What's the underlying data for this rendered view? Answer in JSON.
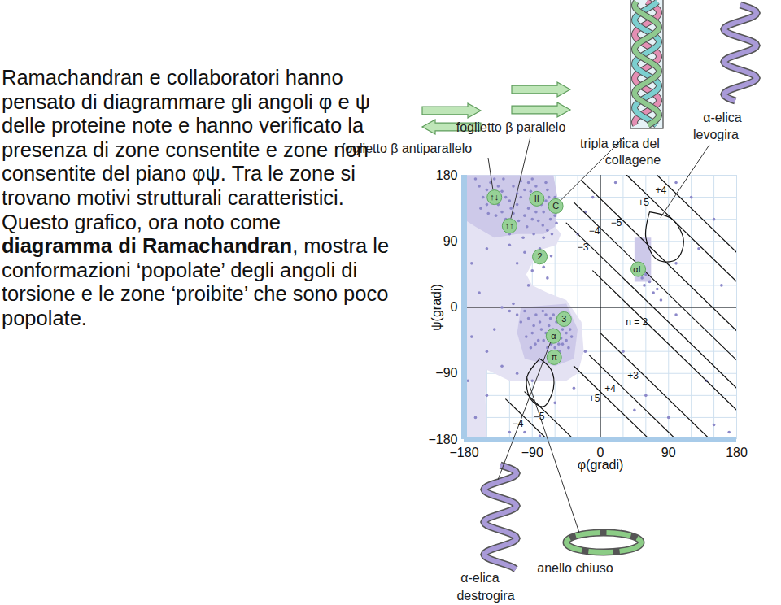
{
  "paragraph": {
    "before": "Ramachandran e collaboratori hanno pensato di diagrammare gli angoli φ e ψ delle proteine note e hanno verificato la presenza di zone consentite e zone non consentite del piano φψ. Tra le zone si trovano motivi strutturali caratteristici. Questo grafico, ora noto come ",
    "bold": "diagramma di Ramachandran",
    "after": ", mostra le conformazioni ‘popolate’ degli angoli di torsione e le zone ‘proibite’ che sono poco popolate."
  },
  "chart_data": {
    "type": "scatter",
    "x_label": "φ(gradi)",
    "y_label": "ψ(gradi)",
    "xlim": [
      -180,
      180
    ],
    "ylim": [
      -180,
      180
    ],
    "xticks": [
      -180,
      -90,
      0,
      90,
      180
    ],
    "yticks": [
      -180,
      -90,
      0,
      90,
      180
    ],
    "grid": true,
    "points": {
      "color": "#8c88c9",
      "values": [
        [
          -150,
          160
        ],
        [
          -145,
          170
        ],
        [
          -140,
          175
        ],
        [
          -135,
          165
        ],
        [
          -130,
          158
        ],
        [
          -125,
          150
        ],
        [
          -120,
          145
        ],
        [
          -118,
          135
        ],
        [
          -115,
          128
        ],
        [
          -110,
          140
        ],
        [
          -105,
          150
        ],
        [
          -100,
          160
        ],
        [
          -95,
          170
        ],
        [
          -90,
          175
        ],
        [
          -85,
          165
        ],
        [
          -80,
          150
        ],
        [
          -78,
          140
        ],
        [
          -75,
          130
        ],
        [
          -72,
          145
        ],
        [
          -70,
          160
        ],
        [
          -68,
          150
        ],
        [
          -65,
          140
        ],
        [
          -62,
          135
        ],
        [
          -60,
          125
        ],
        [
          -66,
          120
        ],
        [
          -85,
          130
        ],
        [
          -90,
          120
        ],
        [
          -95,
          135
        ],
        [
          -100,
          125
        ],
        [
          -108,
          118
        ],
        [
          -112,
          110
        ],
        [
          -125,
          120
        ],
        [
          -130,
          130
        ],
        [
          -135,
          140
        ],
        [
          -140,
          145
        ],
        [
          -145,
          150
        ],
        [
          -150,
          140
        ],
        [
          -155,
          150
        ],
        [
          -160,
          165
        ],
        [
          -165,
          175
        ],
        [
          -128,
          175
        ],
        [
          -115,
          165
        ],
        [
          -105,
          172
        ],
        [
          -92,
          158
        ],
        [
          -88,
          142
        ],
        [
          -82,
          118
        ],
        [
          -76,
          112
        ],
        [
          -70,
          105
        ],
        [
          -97,
          110
        ],
        [
          -120,
          100
        ],
        [
          -138,
          125
        ],
        [
          -148,
          128
        ],
        [
          -158,
          135
        ],
        [
          -110,
          155
        ],
        [
          -72,
          170
        ],
        [
          -60,
          150
        ],
        [
          -55,
          140
        ],
        [
          -58,
          115
        ],
        [
          -64,
          100
        ],
        [
          -75,
          95
        ],
        [
          -88,
          100
        ],
        [
          -102,
          95
        ],
        [
          -100,
          -170
        ],
        [
          -80,
          -175
        ],
        [
          -80,
          80
        ],
        [
          -85,
          65
        ],
        [
          -90,
          50
        ],
        [
          -75,
          55
        ],
        [
          -70,
          40
        ],
        [
          -95,
          30
        ],
        [
          -65,
          70
        ],
        [
          -100,
          75
        ],
        [
          -110,
          60
        ],
        [
          -120,
          85
        ],
        [
          -70,
          -40
        ],
        [
          -65,
          -42
        ],
        [
          -62,
          -38
        ],
        [
          -60,
          -45
        ],
        [
          -58,
          -40
        ],
        [
          -55,
          -35
        ],
        [
          -52,
          -42
        ],
        [
          -50,
          -30
        ],
        [
          -48,
          -25
        ],
        [
          -45,
          -35
        ],
        [
          -63,
          -30
        ],
        [
          -68,
          -25
        ],
        [
          -72,
          -35
        ],
        [
          -75,
          -45
        ],
        [
          -78,
          -30
        ],
        [
          -80,
          -20
        ],
        [
          -85,
          -10
        ],
        [
          -88,
          -25
        ],
        [
          -90,
          -35
        ],
        [
          -95,
          -15
        ],
        [
          -60,
          -55
        ],
        [
          -55,
          -50
        ],
        [
          -65,
          -50
        ],
        [
          -70,
          -55
        ],
        [
          -50,
          -50
        ],
        [
          -45,
          -45
        ],
        [
          -42,
          -55
        ],
        [
          -58,
          -20
        ],
        [
          -66,
          -15
        ],
        [
          -62,
          -10
        ],
        [
          -72,
          -10
        ],
        [
          -76,
          -5
        ],
        [
          -100,
          -5
        ],
        [
          -105,
          -20
        ],
        [
          -110,
          -10
        ],
        [
          -82,
          -45
        ],
        [
          -86,
          -50
        ],
        [
          -92,
          -55
        ],
        [
          -98,
          -40
        ],
        [
          -54,
          -60
        ],
        [
          -60,
          -65
        ],
        [
          -68,
          -62
        ],
        [
          -48,
          -12
        ],
        [
          -44,
          -20
        ],
        [
          -40,
          -30
        ],
        [
          -38,
          -40
        ],
        [
          -115,
          5
        ],
        [
          -120,
          -5
        ],
        [
          -130,
          0
        ],
        [
          -150,
          80
        ],
        [
          -170,
          60
        ],
        [
          -160,
          20
        ],
        [
          -140,
          -30
        ],
        [
          -170,
          -40
        ],
        [
          -130,
          -80
        ],
        [
          -110,
          -90
        ],
        [
          -90,
          -100
        ],
        [
          -150,
          -120
        ],
        [
          -165,
          -150
        ],
        [
          -120,
          -170
        ],
        [
          -60,
          -130
        ],
        [
          -20,
          -60
        ],
        [
          -10,
          150
        ],
        [
          20,
          170
        ],
        [
          70,
          20
        ],
        [
          55,
          40
        ],
        [
          60,
          45
        ],
        [
          65,
          35
        ],
        [
          75,
          25
        ],
        [
          50,
          60
        ],
        [
          58,
          30
        ],
        [
          80,
          10
        ],
        [
          100,
          -10
        ],
        [
          120,
          150
        ],
        [
          150,
          120
        ],
        [
          170,
          -170
        ],
        [
          150,
          -160
        ],
        [
          90,
          -150
        ],
        [
          60,
          -120
        ],
        [
          100,
          60
        ],
        [
          130,
          80
        ],
        [
          160,
          30
        ],
        [
          100,
          170
        ],
        [
          -30,
          100
        ],
        [
          -20,
          130
        ],
        [
          -35,
          -110
        ],
        [
          30,
          -60
        ],
        [
          45,
          -140
        ],
        [
          140,
          -100
        ],
        [
          -175,
          -100
        ],
        [
          -150,
          -60
        ]
      ]
    },
    "regions": [
      {
        "color": "#e4e2f3",
        "points": [
          [
            -180,
            180
          ],
          [
            -62,
            180
          ],
          [
            -60,
            110
          ],
          [
            -52,
            100
          ],
          [
            -58,
            85
          ],
          [
            -80,
            78
          ],
          [
            -90,
            60
          ],
          [
            -98,
            45
          ],
          [
            -90,
            30
          ],
          [
            -70,
            20
          ],
          [
            -45,
            10
          ],
          [
            -25,
            -20
          ],
          [
            -22,
            -60
          ],
          [
            -30,
            -90
          ],
          [
            -45,
            -100
          ],
          [
            -120,
            -100
          ],
          [
            -150,
            -85
          ],
          [
            -152,
            -120
          ],
          [
            -150,
            -180
          ],
          [
            -180,
            -180
          ]
        ]
      },
      {
        "color": "#cdc9e9",
        "points": [
          [
            -180,
            180
          ],
          [
            -62,
            180
          ],
          [
            -55,
            140
          ],
          [
            -60,
            110
          ],
          [
            -75,
            100
          ],
          [
            -110,
            100
          ],
          [
            -140,
            95
          ],
          [
            -165,
            110
          ],
          [
            -180,
            120
          ]
        ]
      },
      {
        "color": "#cdc9e9",
        "points": [
          [
            -105,
            0
          ],
          [
            -45,
            5
          ],
          [
            -30,
            -30
          ],
          [
            -35,
            -70
          ],
          [
            -60,
            -80
          ],
          [
            -100,
            -70
          ],
          [
            -110,
            -35
          ]
        ]
      },
      {
        "color": "#cdc9e9",
        "points": [
          [
            45,
            95
          ],
          [
            67,
            95
          ],
          [
            67,
            35
          ],
          [
            45,
            35
          ]
        ]
      }
    ],
    "contours": [
      {
        "points": [
          [
            -10,
            50
          ],
          [
            180,
            -140
          ]
        ]
      },
      {
        "points": [
          [
            -45,
            115
          ],
          [
            180,
            -110
          ]
        ]
      },
      {
        "points": [
          [
            -35,
            143
          ],
          [
            180,
            -72
          ]
        ]
      },
      {
        "points": [
          [
            -25,
            173
          ],
          [
            180,
            -32
          ]
        ]
      },
      {
        "points": [
          [
            35,
            180
          ],
          [
            180,
            35
          ]
        ]
      },
      {
        "points": [
          [
            75,
            180
          ],
          [
            180,
            75
          ]
        ]
      },
      {
        "points": [
          [
            0,
            -35
          ],
          [
            145,
            -180
          ]
        ]
      },
      {
        "points": [
          [
            -15,
            -65
          ],
          [
            100,
            -180
          ]
        ]
      },
      {
        "points": [
          [
            -35,
            -80
          ],
          [
            65,
            -180
          ]
        ]
      },
      {
        "points": [
          [
            -100,
            -115
          ],
          [
            -70,
            -145
          ],
          [
            -35,
            -180
          ]
        ]
      },
      {
        "points": [
          [
            -125,
            -125
          ],
          [
            -95,
            -155
          ],
          [
            -70,
            -180
          ]
        ]
      },
      {
        "points": [
          [
            -80,
            -70
          ],
          [
            -65,
            -85
          ],
          [
            -62,
            -110
          ],
          [
            -75,
            -135
          ],
          [
            -92,
            -125
          ],
          [
            -97,
            -95
          ],
          [
            -80,
            -70
          ]
        ]
      },
      {
        "points": [
          [
            65,
            130
          ],
          [
            95,
            120
          ],
          [
            110,
            90
          ],
          [
            100,
            65
          ],
          [
            75,
            65
          ],
          [
            60,
            95
          ],
          [
            65,
            130
          ]
        ]
      }
    ],
    "contour_labels": [
      {
        "text": "−3",
        "x": -23,
        "y": 82
      },
      {
        "text": "−4",
        "x": -8,
        "y": 104
      },
      {
        "text": "−5",
        "x": 21,
        "y": 115
      },
      {
        "text": "+5",
        "x": 57,
        "y": 143
      },
      {
        "text": "+4",
        "x": 80,
        "y": 159
      },
      {
        "text": "n = 2",
        "x": 48,
        "y": -20
      },
      {
        "text": "+3",
        "x": 43,
        "y": -93
      },
      {
        "text": "+4",
        "x": 13,
        "y": -111
      },
      {
        "text": "+5",
        "x": -8,
        "y": -124
      },
      {
        "text": "−5",
        "x": -81,
        "y": -149
      },
      {
        "text": "−4",
        "x": -109,
        "y": -159
      }
    ],
    "motifs": {
      "color": "#96d196",
      "items": [
        {
          "label": "↑↓",
          "x": -140,
          "y": 150
        },
        {
          "label": "↑↑",
          "x": -120,
          "y": 111
        },
        {
          "label": "II",
          "x": -84,
          "y": 148
        },
        {
          "label": "C",
          "x": -59,
          "y": 138
        },
        {
          "label": "2",
          "x": -80,
          "y": 69
        },
        {
          "label": "3",
          "x": -48,
          "y": -16
        },
        {
          "label": "α",
          "x": -62,
          "y": -39
        },
        {
          "label": "π",
          "x": -61,
          "y": -68
        },
        {
          "label": "αL",
          "x": 50,
          "y": 52
        }
      ]
    },
    "annotations": [
      {
        "lines": [
          "foglietto β antiparallelo"
        ],
        "target": "↑↓"
      },
      {
        "lines": [
          "foglietto β parallelo"
        ],
        "target": "↑↑"
      },
      {
        "lines": [
          "tripla elica del",
          "collagene"
        ],
        "target": "C"
      },
      {
        "lines": [
          "α-elica",
          "levogira"
        ],
        "target": [
          80,
          122
        ]
      },
      {
        "lines": [
          "α-elica",
          "destrogira"
        ],
        "target": "α"
      },
      {
        "lines": [
          "anello chiuso"
        ],
        "target": [
          -97,
          -95
        ]
      }
    ]
  }
}
